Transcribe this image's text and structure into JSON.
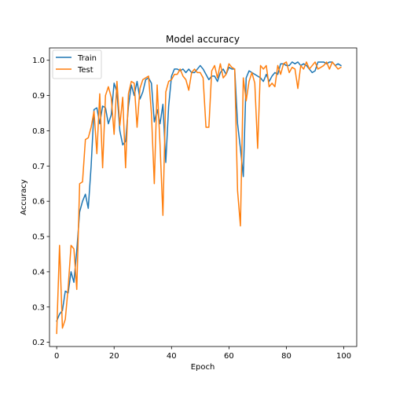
{
  "chart_data": {
    "type": "line",
    "title": "Model accuracy",
    "xlabel": "Epoch",
    "ylabel": "Accuracy",
    "xlim": [
      -2.5,
      104.5
    ],
    "ylim": [
      0.188,
      1.035
    ],
    "xticks": [
      0,
      20,
      40,
      60,
      80,
      100
    ],
    "yticks": [
      0.2,
      0.3,
      0.4,
      0.5,
      0.6,
      0.7,
      0.8,
      0.9,
      1.0
    ],
    "ytick_labels": [
      "0.2",
      "0.3",
      "0.4",
      "0.5",
      "0.6",
      "0.7",
      "0.8",
      "0.9",
      "1.0"
    ],
    "grid": false,
    "legend_position": "top-left",
    "series": [
      {
        "name": "Train",
        "color": "#1f77b4",
        "x": [
          0,
          1,
          2,
          3,
          4,
          5,
          6,
          7,
          8,
          9,
          10,
          11,
          12,
          13,
          14,
          15,
          16,
          17,
          18,
          19,
          20,
          21,
          22,
          23,
          24,
          25,
          26,
          27,
          28,
          29,
          30,
          31,
          32,
          33,
          34,
          35,
          36,
          37,
          38,
          39,
          40,
          41,
          42,
          43,
          44,
          45,
          46,
          47,
          48,
          49,
          50,
          51,
          52,
          53,
          54,
          55,
          56,
          57,
          58,
          59,
          60,
          61,
          62,
          63,
          64,
          65,
          66,
          67,
          68,
          69,
          70,
          71,
          72,
          73,
          74,
          75,
          76,
          77,
          78,
          79,
          80,
          81,
          82,
          83,
          84,
          85,
          86,
          87,
          88,
          89,
          90,
          91,
          92,
          93,
          94,
          95,
          96,
          97,
          98,
          99
        ],
        "values": [
          0.26,
          0.28,
          0.29,
          0.345,
          0.34,
          0.4,
          0.37,
          0.46,
          0.57,
          0.6,
          0.62,
          0.58,
          0.7,
          0.86,
          0.865,
          0.82,
          0.87,
          0.865,
          0.82,
          0.845,
          0.935,
          0.91,
          0.8,
          0.76,
          0.77,
          0.87,
          0.93,
          0.9,
          0.94,
          0.89,
          0.91,
          0.945,
          0.95,
          0.935,
          0.825,
          0.86,
          0.82,
          0.875,
          0.71,
          0.87,
          0.955,
          0.975,
          0.975,
          0.97,
          0.975,
          0.965,
          0.975,
          0.965,
          0.965,
          0.975,
          0.985,
          0.975,
          0.96,
          0.945,
          0.955,
          0.955,
          0.94,
          0.965,
          0.975,
          0.96,
          0.98,
          0.975,
          0.975,
          0.82,
          0.75,
          0.67,
          0.95,
          0.97,
          0.965,
          0.96,
          0.955,
          0.95,
          0.94,
          0.96,
          0.94,
          0.955,
          0.965,
          0.96,
          0.99,
          0.99,
          0.985,
          0.985,
          0.995,
          0.99,
          0.995,
          0.985,
          0.99,
          0.985,
          0.975,
          0.965,
          0.97,
          0.995,
          0.995,
          0.995,
          0.99,
          0.995,
          0.995,
          0.985,
          0.99,
          0.985
        ],
        "x_values": null
      },
      {
        "name": "Test",
        "color": "#ff7f0e",
        "x": [
          0,
          1,
          2,
          3,
          4,
          5,
          6,
          7,
          8,
          9,
          10,
          11,
          12,
          13,
          14,
          15,
          16,
          17,
          18,
          19,
          20,
          21,
          22,
          23,
          24,
          25,
          26,
          27,
          28,
          29,
          30,
          31,
          32,
          33,
          34,
          35,
          36,
          37,
          38,
          39,
          40,
          41,
          42,
          43,
          44,
          45,
          46,
          47,
          48,
          49,
          50,
          51,
          52,
          53,
          54,
          55,
          56,
          57,
          58,
          59,
          60,
          61,
          62,
          63,
          64,
          65,
          66,
          67,
          68,
          69,
          70,
          71,
          72,
          73,
          74,
          75,
          76,
          77,
          78,
          79,
          80,
          81,
          82,
          83,
          84,
          85,
          86,
          87,
          88,
          89,
          90,
          91,
          92,
          93,
          94,
          95,
          96,
          97,
          98,
          99
        ],
        "values": [
          0.225,
          0.475,
          0.24,
          0.265,
          0.355,
          0.475,
          0.465,
          0.35,
          0.65,
          0.655,
          0.775,
          0.78,
          0.81,
          0.855,
          0.735,
          0.905,
          0.695,
          0.9,
          0.925,
          0.895,
          0.79,
          0.94,
          0.815,
          0.895,
          0.695,
          0.905,
          0.94,
          0.935,
          0.81,
          0.92,
          0.945,
          0.95,
          0.955,
          0.85,
          0.65,
          0.93,
          0.76,
          0.56,
          0.91,
          0.94,
          0.945,
          0.96,
          0.96,
          0.975,
          0.955,
          0.945,
          0.915,
          0.965,
          0.975,
          0.965,
          0.965,
          0.95,
          0.81,
          0.81,
          0.97,
          0.985,
          0.95,
          0.99,
          0.95,
          0.96,
          0.99,
          0.98,
          0.975,
          0.63,
          0.53,
          0.95,
          0.885,
          0.94,
          0.965,
          0.935,
          0.75,
          0.985,
          0.975,
          0.985,
          0.925,
          0.935,
          0.925,
          0.985,
          0.96,
          0.99,
          0.995,
          0.965,
          0.98,
          0.975,
          0.92,
          0.985,
          0.975,
          0.995,
          0.975,
          0.985,
          0.995,
          0.975,
          0.98,
          0.985,
          0.995,
          0.975,
          0.995,
          0.985,
          0.975,
          0.98
        ],
        "x_values": null
      }
    ]
  }
}
